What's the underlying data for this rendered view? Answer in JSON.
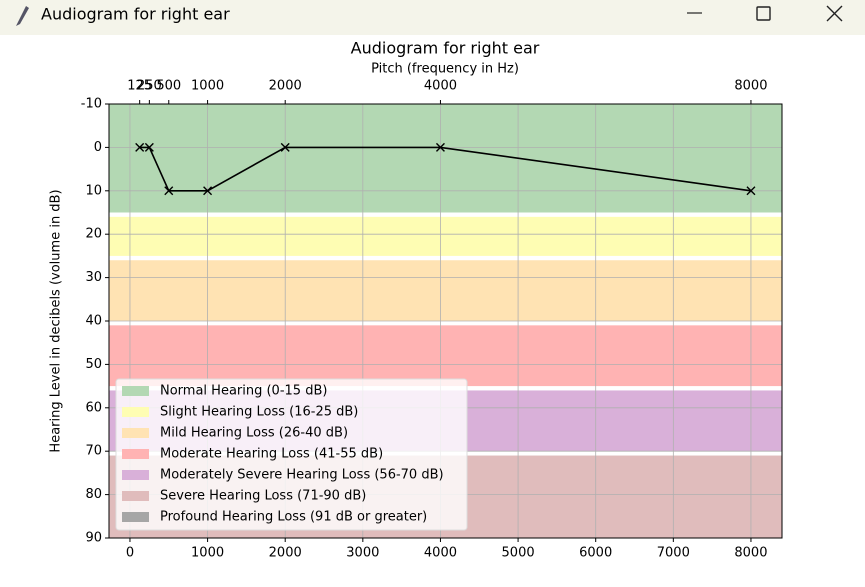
{
  "window": {
    "title": "Audiogram for right ear"
  },
  "chart_data": {
    "type": "line",
    "title": "Audiogram for right ear",
    "x_top_label": "Pitch (frequency in Hz)",
    "y_label": "Hearing Level in decibels (volume in dB)",
    "x": [
      125,
      250,
      500,
      1000,
      2000,
      4000,
      8000
    ],
    "series": [
      {
        "color": "#000000",
        "values": [
          0,
          0,
          10,
          10,
          0,
          0,
          10
        ]
      }
    ],
    "xlim": [
      -270,
      8400
    ],
    "xticks": [
      0,
      1000,
      2000,
      3000,
      4000,
      5000,
      6000,
      7000,
      8000
    ],
    "x_top_ticks": [
      125,
      250,
      500,
      1000,
      2000,
      4000,
      8000
    ],
    "ylim": [
      -10,
      90
    ],
    "y_inverted": true,
    "yticks": [
      -10,
      0,
      10,
      20,
      30,
      40,
      50,
      60,
      70,
      80,
      90
    ],
    "grid": true,
    "bands": [
      {
        "name": "Normal Hearing (0-15 dB)",
        "color": "#b3d8b3",
        "range": [
          -10,
          15
        ]
      },
      {
        "name": "Slight Hearing Loss (16-25 dB)",
        "color": "#fefdb3",
        "range": [
          16,
          25
        ]
      },
      {
        "name": "Mild Hearing Loss (26-40 dB)",
        "color": "#ffe3b3",
        "range": [
          26,
          40
        ]
      },
      {
        "name": "Moderate Hearing Loss (41-55 dB)",
        "color": "#ffb3b3",
        "range": [
          41,
          55
        ]
      },
      {
        "name": "Moderately Severe Hearing Loss (56-70 dB)",
        "color": "#d9b0d9",
        "range": [
          56,
          70
        ]
      },
      {
        "name": "Severe Hearing Loss (71-90 dB)",
        "color": "#e0bcbc",
        "range": [
          71,
          90
        ]
      },
      {
        "name": "Profound Hearing Loss (91 dB or greater)",
        "color": "#a6a6a6"
      }
    ],
    "legend": "lower left"
  }
}
